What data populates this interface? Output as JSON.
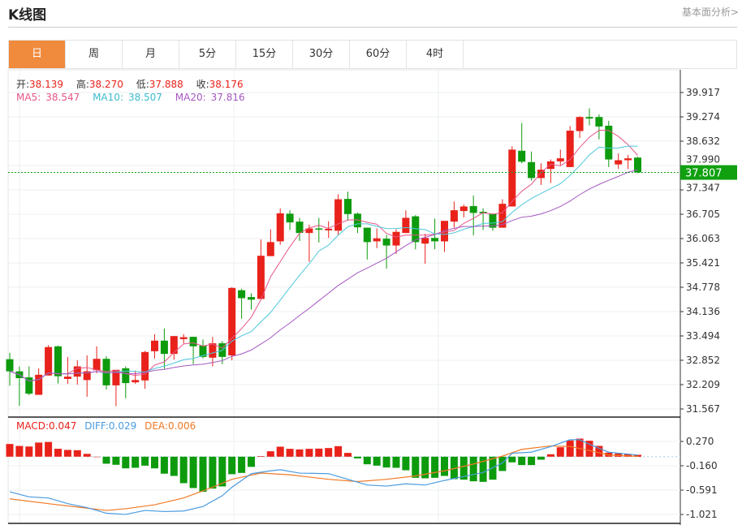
{
  "header": {
    "title": "K线图",
    "link": "基本面分析>"
  },
  "tabs": [
    {
      "label": "日",
      "active": true
    },
    {
      "label": "周"
    },
    {
      "label": "月"
    },
    {
      "label": "5分"
    },
    {
      "label": "15分"
    },
    {
      "label": "30分"
    },
    {
      "label": "60分"
    },
    {
      "label": "4时"
    }
  ],
  "info": {
    "open_label": "开:",
    "open": "38.139",
    "high_label": "高:",
    "high": "38.270",
    "low_label": "低:",
    "low": "37.888",
    "close_label": "收:",
    "close": "38.176",
    "ma5_label": "MA5:",
    "ma5": "38.547",
    "ma10_label": "MA10:",
    "ma10": "38.507",
    "ma20_label": "MA20:",
    "ma20": "37.816"
  },
  "macd_info": {
    "macd": "MACD:0.047",
    "diff": "DIFF:0.029",
    "dea": "DEA:0.006"
  },
  "colors": {
    "up": "#e8221a",
    "down": "#0d9b0d",
    "ma5": "#e8558a",
    "ma10": "#4cc8dc",
    "ma20": "#a658c0",
    "diff": "#4a9be0",
    "dea": "#f07a26",
    "accent": "#f08a3c",
    "price_tag": "#10a010"
  },
  "current_price": "37.807",
  "chart_data": [
    {
      "type": "candlestick",
      "y_ticks": [
        "39.917",
        "39.274",
        "38.632",
        "37.990",
        "37.347",
        "36.705",
        "36.063",
        "35.421",
        "34.778",
        "34.136",
        "33.494",
        "32.852",
        "32.209",
        "31.567"
      ],
      "ylim": [
        31.567,
        39.917
      ],
      "current": 37.807,
      "ohlc": [
        [
          32.88,
          33.05,
          32.18,
          32.56
        ],
        [
          32.56,
          32.69,
          31.65,
          32.38
        ],
        [
          32.4,
          32.69,
          31.93,
          31.97
        ],
        [
          31.94,
          32.64,
          31.94,
          32.47
        ],
        [
          32.45,
          33.25,
          32.45,
          33.2
        ],
        [
          33.22,
          33.24,
          32.24,
          32.43
        ],
        [
          32.36,
          32.94,
          32.23,
          32.42
        ],
        [
          32.42,
          32.85,
          32.21,
          32.69
        ],
        [
          32.33,
          32.98,
          31.89,
          32.56
        ],
        [
          32.59,
          33.22,
          32.51,
          32.89
        ],
        [
          32.89,
          32.96,
          32.08,
          32.19
        ],
        [
          32.19,
          32.6,
          31.64,
          32.6
        ],
        [
          32.64,
          32.69,
          31.85,
          32.25
        ],
        [
          32.27,
          32.58,
          32.23,
          32.33
        ],
        [
          32.32,
          33.1,
          32.1,
          33.07
        ],
        [
          33.09,
          33.54,
          32.9,
          33.37
        ],
        [
          33.37,
          33.69,
          32.62,
          33.02
        ],
        [
          33.02,
          33.49,
          32.87,
          33.49
        ],
        [
          33.41,
          33.54,
          33.3,
          33.46
        ],
        [
          33.47,
          33.47,
          32.75,
          33.22
        ],
        [
          33.24,
          33.4,
          32.9,
          32.94
        ],
        [
          32.92,
          33.47,
          32.69,
          33.3
        ],
        [
          33.3,
          33.36,
          32.75,
          32.94
        ],
        [
          32.98,
          34.78,
          32.85,
          34.76
        ],
        [
          34.7,
          34.74,
          33.95,
          34.49
        ],
        [
          34.52,
          34.62,
          34.19,
          34.45
        ],
        [
          34.47,
          36.04,
          34.47,
          35.61
        ],
        [
          35.6,
          36.31,
          35.6,
          35.97
        ],
        [
          35.99,
          36.86,
          35.9,
          36.73
        ],
        [
          36.72,
          36.81,
          36.29,
          36.49
        ],
        [
          36.51,
          36.61,
          36.0,
          36.21
        ],
        [
          36.21,
          36.43,
          35.45,
          36.33
        ],
        [
          36.33,
          36.61,
          35.96,
          36.3
        ],
        [
          36.28,
          36.52,
          36.08,
          36.32
        ],
        [
          36.27,
          37.23,
          36.15,
          37.1
        ],
        [
          37.11,
          37.3,
          36.54,
          36.71
        ],
        [
          36.72,
          36.75,
          36.21,
          36.36
        ],
        [
          36.35,
          36.35,
          35.51,
          35.97
        ],
        [
          35.99,
          36.33,
          35.81,
          36.07
        ],
        [
          36.06,
          36.16,
          35.27,
          35.88
        ],
        [
          35.88,
          36.31,
          35.66,
          36.24
        ],
        [
          36.21,
          36.81,
          36.21,
          36.61
        ],
        [
          36.65,
          36.68,
          35.78,
          35.97
        ],
        [
          35.93,
          36.19,
          35.4,
          36.08
        ],
        [
          36.08,
          36.59,
          35.78,
          35.99
        ],
        [
          35.99,
          36.53,
          35.71,
          36.53
        ],
        [
          36.51,
          37.04,
          36.35,
          36.81
        ],
        [
          36.79,
          36.96,
          36.62,
          36.91
        ],
        [
          36.92,
          37.2,
          36.15,
          36.74
        ],
        [
          36.77,
          36.86,
          36.29,
          36.73
        ],
        [
          36.72,
          36.72,
          36.27,
          36.35
        ],
        [
          36.35,
          37.1,
          36.35,
          36.98
        ],
        [
          36.91,
          38.5,
          36.91,
          38.41
        ],
        [
          38.38,
          39.11,
          38.05,
          38.09
        ],
        [
          38.08,
          38.36,
          37.59,
          37.66
        ],
        [
          37.66,
          38.05,
          37.48,
          37.88
        ],
        [
          37.9,
          38.15,
          37.53,
          38.1
        ],
        [
          38.1,
          38.41,
          38.0,
          38.18
        ],
        [
          37.95,
          39.03,
          37.95,
          38.91
        ],
        [
          38.9,
          39.29,
          38.72,
          39.27
        ],
        [
          39.27,
          39.5,
          39.05,
          39.23
        ],
        [
          39.27,
          39.34,
          38.68,
          39.02
        ],
        [
          39.04,
          39.17,
          37.95,
          38.15
        ],
        [
          38.02,
          38.31,
          37.9,
          38.13
        ],
        [
          38.13,
          38.27,
          37.9,
          38.18
        ],
        [
          38.2,
          38.22,
          37.79,
          37.81
        ]
      ],
      "ma_periods": [
        5,
        10,
        20
      ]
    },
    {
      "type": "macd",
      "y_ticks": [
        "0.270",
        "-0.160",
        "-0.591",
        "-1.021"
      ],
      "ylim": [
        -1.06,
        0.38
      ],
      "histogram": [
        0.225,
        0.19,
        0.18,
        0.25,
        0.26,
        0.14,
        0.12,
        0.115,
        0.05,
        0,
        -0.124,
        -0.143,
        -0.206,
        -0.196,
        -0.158,
        -0.206,
        -0.3,
        -0.34,
        -0.468,
        -0.554,
        -0.62,
        -0.564,
        -0.526,
        -0.31,
        -0.287,
        -0.18,
        0.01,
        0.096,
        0.177,
        0.139,
        0.129,
        0.139,
        0.143,
        0.153,
        0.186,
        0.067,
        -0.03,
        -0.134,
        -0.158,
        -0.191,
        -0.196,
        -0.24,
        -0.373,
        -0.382,
        -0.373,
        -0.34,
        -0.397,
        -0.406,
        -0.435,
        -0.445,
        -0.406,
        -0.253,
        -0.1,
        -0.148,
        -0.148,
        -0.053,
        0.043,
        0.167,
        0.287,
        0.32,
        0.282,
        0.191,
        0.072,
        0.057,
        0.048,
        0.033
      ],
      "diff": [
        [
          0,
          -0.62
        ],
        [
          2,
          -0.71
        ],
        [
          4,
          -0.73
        ],
        [
          6,
          -0.83
        ],
        [
          8,
          -0.9
        ],
        [
          10,
          -1.0
        ],
        [
          12,
          -1.02
        ],
        [
          14,
          -0.95
        ],
        [
          16,
          -0.97
        ],
        [
          18,
          -0.96
        ],
        [
          20,
          -0.88
        ],
        [
          22,
          -0.69
        ],
        [
          23,
          -0.54
        ],
        [
          25,
          -0.3
        ],
        [
          27,
          -0.25
        ],
        [
          28,
          -0.23
        ],
        [
          30,
          -0.29
        ],
        [
          33,
          -0.3
        ],
        [
          35,
          -0.4
        ],
        [
          37,
          -0.5
        ],
        [
          39,
          -0.52
        ],
        [
          41,
          -0.48
        ],
        [
          43,
          -0.5
        ],
        [
          45,
          -0.42
        ],
        [
          47,
          -0.35
        ],
        [
          49,
          -0.28
        ],
        [
          51,
          -0.11
        ],
        [
          52,
          0.06
        ],
        [
          54,
          0.08
        ],
        [
          56,
          0.18
        ],
        [
          58,
          0.3
        ],
        [
          59,
          0.3
        ],
        [
          60,
          0.22
        ],
        [
          62,
          0.08
        ],
        [
          65,
          0.029
        ]
      ],
      "dea": [
        [
          0,
          -0.745
        ],
        [
          4,
          -0.83
        ],
        [
          8,
          -0.91
        ],
        [
          10,
          -0.95
        ],
        [
          12,
          -0.92
        ],
        [
          15,
          -0.85
        ],
        [
          18,
          -0.73
        ],
        [
          21,
          -0.54
        ],
        [
          23,
          -0.4
        ],
        [
          26,
          -0.29
        ],
        [
          29,
          -0.32
        ],
        [
          33,
          -0.4
        ],
        [
          36,
          -0.44
        ],
        [
          39,
          -0.4
        ],
        [
          42,
          -0.34
        ],
        [
          45,
          -0.25
        ],
        [
          48,
          -0.13
        ],
        [
          51,
          0.01
        ],
        [
          53,
          0.13
        ],
        [
          56,
          0.19
        ],
        [
          58,
          0.18
        ],
        [
          60,
          0.11
        ],
        [
          62,
          0.03
        ],
        [
          65,
          0.006
        ]
      ]
    }
  ]
}
